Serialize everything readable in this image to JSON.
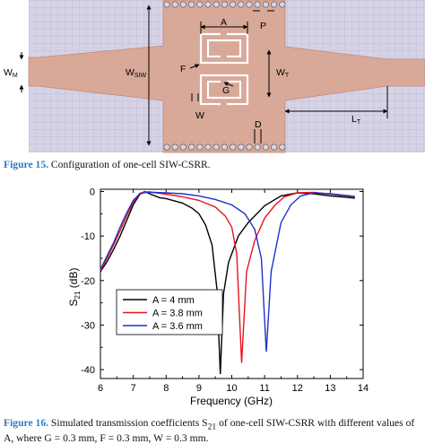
{
  "figure15": {
    "labels": {
      "wm": "W",
      "wm_sub": "M",
      "wsiw": "W",
      "wsiw_sub": "SIW",
      "wt": "W",
      "wt_sub": "T",
      "lt": "L",
      "lt_sub": "T",
      "a": "A",
      "p": "P",
      "f": "F",
      "g": "G",
      "w": "W",
      "d": "D"
    },
    "caption": {
      "label": "Figure 15.",
      "text": " Configuration of one-cell SIW-CSRR."
    },
    "colors": {
      "background": "#d6d3e6",
      "grid": "#b9b7d0",
      "substrate": "#d8a898",
      "copper_edge": "#c48b80",
      "caption_label": "#2e7bc4"
    }
  },
  "figure16": {
    "caption": {
      "label": "Figure 16.",
      "text_a": " Simulated transmission coefficients S",
      "sub": "21",
      "text_b": " of one-cell SIW-CSRR with different values of A, where G = 0.3 mm, F = 0.3 mm, W = 0.3 mm."
    }
  },
  "chart_data": {
    "type": "line",
    "xlabel": "Frequency (GHz)",
    "ylabel": "S",
    "ylabel_sub": "21",
    "ylabel_suffix": " (dB)",
    "xlim": [
      6,
      14
    ],
    "ylim": [
      -42,
      0.5
    ],
    "xticks": [
      6,
      7,
      8,
      9,
      10,
      11,
      12,
      13,
      14
    ],
    "yticks": [
      0,
      -10,
      -20,
      -30,
      -40
    ],
    "legend_position": "center",
    "series": [
      {
        "name": "A = 4 mm",
        "color": "#000000",
        "points": [
          [
            6.0,
            -18.0
          ],
          [
            6.2,
            -15.8
          ],
          [
            6.4,
            -13.0
          ],
          [
            6.6,
            -10.0
          ],
          [
            6.8,
            -6.5
          ],
          [
            7.0,
            -3.0
          ],
          [
            7.2,
            -0.6
          ],
          [
            7.35,
            0.0
          ],
          [
            7.5,
            -0.5
          ],
          [
            7.8,
            -1.4
          ],
          [
            8.0,
            -1.6
          ],
          [
            8.5,
            -2.6
          ],
          [
            8.8,
            -3.8
          ],
          [
            9.0,
            -5.0
          ],
          [
            9.2,
            -7.5
          ],
          [
            9.4,
            -12.0
          ],
          [
            9.55,
            -22.0
          ],
          [
            9.65,
            -41.0
          ],
          [
            9.75,
            -23.0
          ],
          [
            9.9,
            -16.0
          ],
          [
            10.2,
            -10.0
          ],
          [
            10.5,
            -7.0
          ],
          [
            11.0,
            -3.2
          ],
          [
            11.5,
            -1.0
          ],
          [
            12.0,
            -0.3
          ],
          [
            12.5,
            -0.5
          ],
          [
            13.0,
            -1.0
          ],
          [
            13.5,
            -1.3
          ],
          [
            13.75,
            -1.5
          ]
        ]
      },
      {
        "name": "A = 3.8 mm",
        "color": "#e8141c",
        "points": [
          [
            6.0,
            -17.8
          ],
          [
            6.2,
            -15.0
          ],
          [
            6.4,
            -12.0
          ],
          [
            6.6,
            -8.8
          ],
          [
            6.8,
            -5.5
          ],
          [
            7.0,
            -2.4
          ],
          [
            7.2,
            -0.4
          ],
          [
            7.35,
            -0.1
          ],
          [
            7.5,
            -0.1
          ],
          [
            8.0,
            -0.6
          ],
          [
            8.5,
            -1.2
          ],
          [
            9.0,
            -2.0
          ],
          [
            9.5,
            -3.5
          ],
          [
            9.8,
            -5.5
          ],
          [
            10.0,
            -8.0
          ],
          [
            10.15,
            -14.0
          ],
          [
            10.3,
            -38.5
          ],
          [
            10.45,
            -18.0
          ],
          [
            10.7,
            -11.0
          ],
          [
            11.0,
            -6.0
          ],
          [
            11.3,
            -3.2
          ],
          [
            11.6,
            -1.2
          ],
          [
            12.0,
            -0.3
          ],
          [
            12.5,
            -0.2
          ],
          [
            13.0,
            -0.6
          ],
          [
            13.5,
            -1.0
          ],
          [
            13.75,
            -1.2
          ]
        ]
      },
      {
        "name": "A = 3.6 mm",
        "color": "#1e32c8",
        "points": [
          [
            6.0,
            -17.5
          ],
          [
            6.2,
            -14.5
          ],
          [
            6.4,
            -11.5
          ],
          [
            6.6,
            -8.0
          ],
          [
            6.8,
            -4.8
          ],
          [
            7.0,
            -2.0
          ],
          [
            7.2,
            -0.5
          ],
          [
            7.4,
            -0.2
          ],
          [
            7.6,
            -0.2
          ],
          [
            8.0,
            -0.3
          ],
          [
            8.5,
            -0.5
          ],
          [
            9.0,
            -1.0
          ],
          [
            9.5,
            -1.8
          ],
          [
            10.0,
            -3.0
          ],
          [
            10.4,
            -5.0
          ],
          [
            10.7,
            -8.5
          ],
          [
            10.9,
            -15.0
          ],
          [
            11.05,
            -36.0
          ],
          [
            11.2,
            -18.0
          ],
          [
            11.5,
            -7.0
          ],
          [
            11.8,
            -3.0
          ],
          [
            12.1,
            -1.0
          ],
          [
            12.5,
            -0.3
          ],
          [
            13.0,
            -0.5
          ],
          [
            13.5,
            -0.9
          ],
          [
            13.75,
            -1.1
          ]
        ]
      }
    ]
  }
}
